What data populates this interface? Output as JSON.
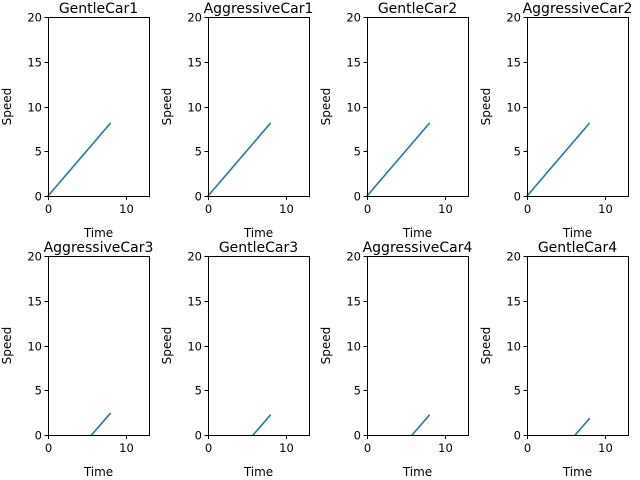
{
  "figure": {
    "line_color": "#1f77b4"
  },
  "chart_data": [
    {
      "type": "line",
      "title": "GentleCar1",
      "xlabel": "Time",
      "ylabel": "Speed",
      "xlim": [
        0,
        13
      ],
      "ylim": [
        0,
        20
      ],
      "xticks": [
        "0",
        "10"
      ],
      "yticks": [
        "0",
        "5",
        "10",
        "15",
        "20"
      ],
      "grid": false,
      "x": [
        0,
        8
      ],
      "y": [
        0,
        8.1
      ]
    },
    {
      "type": "line",
      "title": "AggressiveCar1",
      "xlabel": "Time",
      "ylabel": "Speed",
      "xlim": [
        0,
        13
      ],
      "ylim": [
        0,
        20
      ],
      "xticks": [
        "0",
        "10"
      ],
      "yticks": [
        "0",
        "5",
        "10",
        "15",
        "20"
      ],
      "grid": false,
      "x": [
        0,
        8
      ],
      "y": [
        0,
        8.1
      ]
    },
    {
      "type": "line",
      "title": "GentleCar2",
      "xlabel": "Time",
      "ylabel": "Speed",
      "xlim": [
        0,
        13
      ],
      "ylim": [
        0,
        20
      ],
      "xticks": [
        "0",
        "10"
      ],
      "yticks": [
        "0",
        "5",
        "10",
        "15",
        "20"
      ],
      "grid": false,
      "x": [
        0,
        8
      ],
      "y": [
        0,
        8.1
      ]
    },
    {
      "type": "line",
      "title": "AggressiveCar2",
      "xlabel": "Time",
      "ylabel": "Speed",
      "xlim": [
        0,
        13
      ],
      "ylim": [
        0,
        20
      ],
      "xticks": [
        "0",
        "10"
      ],
      "yticks": [
        "0",
        "5",
        "10",
        "15",
        "20"
      ],
      "grid": false,
      "x": [
        0,
        8
      ],
      "y": [
        0,
        8.1
      ]
    },
    {
      "type": "line",
      "title": "AggressiveCar3",
      "xlabel": "Time",
      "ylabel": "Speed",
      "xlim": [
        0,
        13
      ],
      "ylim": [
        0,
        20
      ],
      "xticks": [
        "0",
        "10"
      ],
      "yticks": [
        "0",
        "5",
        "10",
        "15",
        "20"
      ],
      "grid": false,
      "x": [
        5.6,
        8
      ],
      "y": [
        0,
        2.4
      ]
    },
    {
      "type": "line",
      "title": "GentleCar3",
      "xlabel": "Time",
      "ylabel": "Speed",
      "xlim": [
        0,
        13
      ],
      "ylim": [
        0,
        20
      ],
      "xticks": [
        "0",
        "10"
      ],
      "yticks": [
        "0",
        "5",
        "10",
        "15",
        "20"
      ],
      "grid": false,
      "x": [
        5.8,
        8
      ],
      "y": [
        0,
        2.2
      ]
    },
    {
      "type": "line",
      "title": "AggressiveCar4",
      "xlabel": "Time",
      "ylabel": "Speed",
      "xlim": [
        0,
        13
      ],
      "ylim": [
        0,
        20
      ],
      "xticks": [
        "0",
        "10"
      ],
      "yticks": [
        "0",
        "5",
        "10",
        "15",
        "20"
      ],
      "grid": false,
      "x": [
        5.8,
        8
      ],
      "y": [
        0,
        2.2
      ]
    },
    {
      "type": "line",
      "title": "GentleCar4",
      "xlabel": "Time",
      "ylabel": "Speed",
      "xlim": [
        0,
        13
      ],
      "ylim": [
        0,
        20
      ],
      "xticks": [
        "0",
        "10"
      ],
      "yticks": [
        "0",
        "5",
        "10",
        "15",
        "20"
      ],
      "grid": false,
      "x": [
        6.2,
        8
      ],
      "y": [
        0,
        1.8
      ]
    }
  ]
}
